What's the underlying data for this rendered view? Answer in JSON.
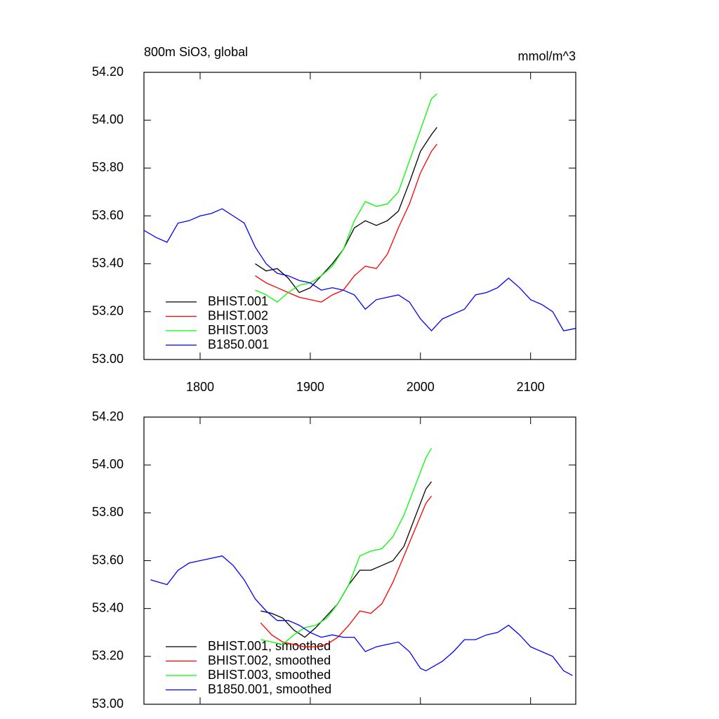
{
  "chart_data": [
    {
      "type": "line",
      "title": "800m SiO3, global",
      "units_label": "mmol/m^3",
      "xlim": [
        1749,
        2141
      ],
      "xticks": [
        1800,
        1900,
        2000,
        2100
      ],
      "ylim": [
        53.0,
        54.2
      ],
      "yticks": [
        {
          "value": 53.0,
          "label": "53.00"
        },
        {
          "value": 53.2,
          "label": "53.20"
        },
        {
          "value": 53.4,
          "label": "53.40"
        },
        {
          "value": 53.6,
          "label": "53.60"
        },
        {
          "value": 53.8,
          "label": "53.80"
        },
        {
          "value": 54.0,
          "label": "54.00"
        },
        {
          "value": 54.2,
          "label": "54.20"
        }
      ],
      "series": [
        {
          "name": "BHIST.001",
          "color": "#000000",
          "x": [
            1850,
            1860,
            1870,
            1880,
            1890,
            1900,
            1910,
            1920,
            1930,
            1940,
            1950,
            1960,
            1970,
            1980,
            1990,
            2000,
            2010,
            2015
          ],
          "values": [
            53.4,
            53.37,
            53.38,
            53.34,
            53.28,
            53.3,
            53.35,
            53.4,
            53.46,
            53.55,
            53.58,
            53.56,
            53.58,
            53.62,
            53.74,
            53.87,
            53.94,
            53.97
          ]
        },
        {
          "name": "BHIST.002",
          "color": "#ff0000",
          "x": [
            1850,
            1860,
            1870,
            1880,
            1890,
            1900,
            1910,
            1920,
            1930,
            1940,
            1950,
            1960,
            1970,
            1980,
            1990,
            2000,
            2010,
            2015
          ],
          "values": [
            53.35,
            53.32,
            53.3,
            53.28,
            53.26,
            53.25,
            53.24,
            53.27,
            53.29,
            53.35,
            53.39,
            53.38,
            53.44,
            53.55,
            53.65,
            53.78,
            53.87,
            53.9
          ]
        },
        {
          "name": "BHIST.003",
          "color": "#00ff00",
          "x": [
            1850,
            1860,
            1870,
            1880,
            1890,
            1900,
            1910,
            1920,
            1930,
            1940,
            1950,
            1960,
            1970,
            1980,
            1990,
            2000,
            2010,
            2015
          ],
          "values": [
            53.29,
            53.27,
            53.24,
            53.28,
            53.31,
            53.32,
            53.35,
            53.39,
            53.46,
            53.58,
            53.66,
            53.64,
            53.65,
            53.7,
            53.83,
            53.96,
            54.09,
            54.11
          ]
        },
        {
          "name": "B1850.001",
          "color": "#0000ff",
          "x": [
            1749,
            1760,
            1770,
            1780,
            1790,
            1800,
            1810,
            1820,
            1830,
            1840,
            1850,
            1860,
            1870,
            1880,
            1890,
            1900,
            1910,
            1920,
            1930,
            1940,
            1950,
            1960,
            1970,
            1980,
            1990,
            2000,
            2010,
            2020,
            2030,
            2040,
            2050,
            2060,
            2070,
            2080,
            2090,
            2100,
            2110,
            2120,
            2130,
            2141
          ],
          "values": [
            53.54,
            53.51,
            53.49,
            53.57,
            53.58,
            53.6,
            53.61,
            53.63,
            53.6,
            53.57,
            53.47,
            53.4,
            53.36,
            53.35,
            53.33,
            53.32,
            53.29,
            53.3,
            53.29,
            53.27,
            53.21,
            53.25,
            53.26,
            53.27,
            53.24,
            53.17,
            53.12,
            53.17,
            53.19,
            53.21,
            53.27,
            53.28,
            53.3,
            53.34,
            53.3,
            53.25,
            53.23,
            53.2,
            53.12,
            53.13
          ]
        }
      ]
    },
    {
      "type": "line",
      "xlim": [
        1749,
        2141
      ],
      "xticks": [
        1800,
        1900,
        2000,
        2100
      ],
      "ylim": [
        53.0,
        54.2
      ],
      "yticks": [
        {
          "value": 53.0,
          "label": "53.00"
        },
        {
          "value": 53.2,
          "label": "53.20"
        },
        {
          "value": 53.4,
          "label": "53.40"
        },
        {
          "value": 53.6,
          "label": "53.60"
        },
        {
          "value": 53.8,
          "label": "53.80"
        },
        {
          "value": 54.0,
          "label": "54.00"
        },
        {
          "value": 54.2,
          "label": "54.20"
        }
      ],
      "series": [
        {
          "name": "BHIST.001, smoothed",
          "color": "#000000",
          "x": [
            1855,
            1865,
            1875,
            1885,
            1895,
            1905,
            1915,
            1925,
            1935,
            1945,
            1955,
            1965,
            1975,
            1985,
            1995,
            2005,
            2010
          ],
          "values": [
            53.39,
            53.38,
            53.36,
            53.31,
            53.28,
            53.32,
            53.37,
            53.42,
            53.5,
            53.56,
            53.56,
            53.58,
            53.6,
            53.66,
            53.78,
            53.9,
            53.93
          ]
        },
        {
          "name": "BHIST.002, smoothed",
          "color": "#ff0000",
          "x": [
            1855,
            1865,
            1875,
            1885,
            1895,
            1905,
            1915,
            1925,
            1935,
            1945,
            1955,
            1965,
            1975,
            1985,
            1995,
            2005,
            2010
          ],
          "values": [
            53.34,
            53.29,
            53.26,
            53.25,
            53.24,
            53.24,
            53.25,
            53.28,
            53.33,
            53.39,
            53.38,
            53.42,
            53.51,
            53.62,
            53.73,
            53.84,
            53.87
          ]
        },
        {
          "name": "BHIST.003, smoothed",
          "color": "#00ff00",
          "x": [
            1855,
            1865,
            1875,
            1885,
            1895,
            1905,
            1915,
            1925,
            1935,
            1945,
            1955,
            1965,
            1975,
            1985,
            1995,
            2005,
            2010
          ],
          "values": [
            53.27,
            53.26,
            53.25,
            53.29,
            53.32,
            53.33,
            53.36,
            53.42,
            53.5,
            53.62,
            53.64,
            53.65,
            53.7,
            53.79,
            53.91,
            54.03,
            54.07
          ]
        },
        {
          "name": "B1850.001, smoothed",
          "color": "#0000ff",
          "x": [
            1755,
            1770,
            1780,
            1790,
            1800,
            1810,
            1820,
            1830,
            1840,
            1850,
            1860,
            1870,
            1880,
            1890,
            1900,
            1910,
            1920,
            1930,
            1940,
            1950,
            1960,
            1970,
            1980,
            1990,
            2000,
            2005,
            2020,
            2030,
            2040,
            2050,
            2060,
            2070,
            2080,
            2090,
            2100,
            2110,
            2120,
            2130,
            2138
          ],
          "values": [
            53.52,
            53.5,
            53.56,
            53.59,
            53.6,
            53.61,
            53.62,
            53.58,
            53.52,
            53.44,
            53.39,
            53.35,
            53.35,
            53.33,
            53.3,
            53.28,
            53.29,
            53.28,
            53.28,
            53.22,
            53.24,
            53.25,
            53.26,
            53.22,
            53.15,
            53.14,
            53.18,
            53.22,
            53.27,
            53.27,
            53.29,
            53.3,
            53.33,
            53.29,
            53.24,
            53.22,
            53.2,
            53.14,
            53.12
          ]
        }
      ]
    }
  ]
}
